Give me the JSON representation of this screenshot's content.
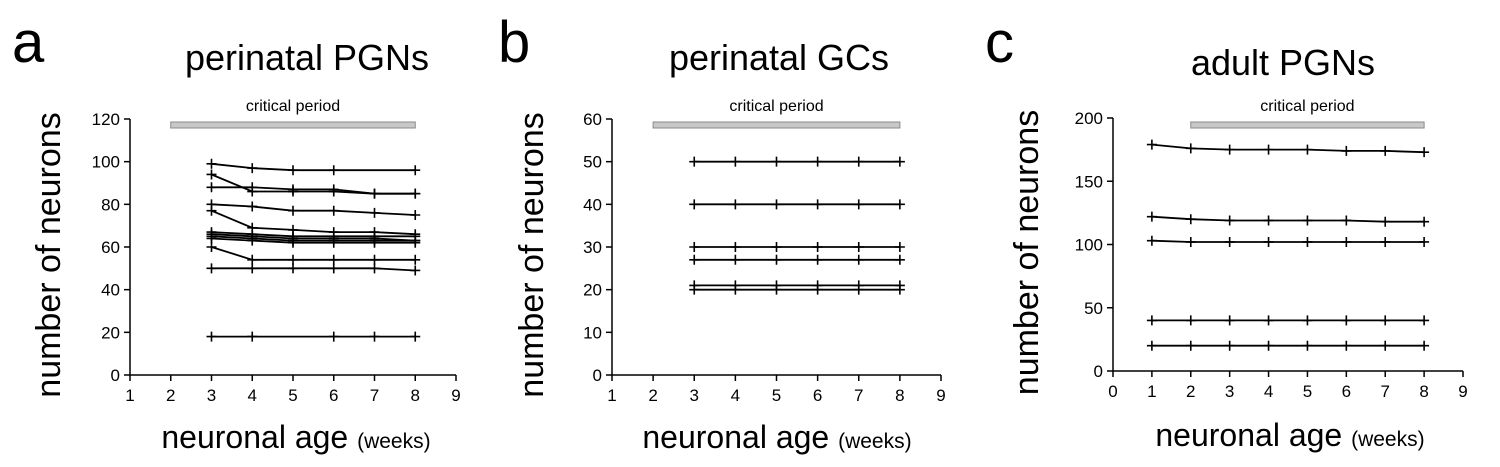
{
  "chart_data": [
    {
      "type": "line",
      "panel_label": "a",
      "title": "perinatal PGNs",
      "ylabel": "number of neurons",
      "xlabel": "neuronal age",
      "xlabel_unit": "(weeks)",
      "xlim": [
        1,
        9
      ],
      "ylim": [
        0,
        120
      ],
      "xticks": [
        1,
        2,
        3,
        4,
        5,
        6,
        7,
        8,
        9
      ],
      "yticks": [
        0,
        20,
        40,
        60,
        80,
        100,
        120
      ],
      "critical_period": {
        "label": "critical period",
        "range": [
          2,
          8
        ]
      },
      "series": [
        {
          "x": [
            3,
            4,
            5,
            6,
            8
          ],
          "y": [
            99,
            97,
            96,
            96,
            96
          ]
        },
        {
          "x": [
            3,
            4,
            5,
            6,
            7,
            8
          ],
          "y": [
            94,
            86,
            86,
            86,
            85,
            85
          ]
        },
        {
          "x": [
            3,
            4,
            5,
            6,
            7,
            8
          ],
          "y": [
            88,
            88,
            87,
            87,
            85,
            85
          ]
        },
        {
          "x": [
            3,
            4,
            5,
            6,
            7,
            8
          ],
          "y": [
            80,
            79,
            77,
            77,
            76,
            75
          ]
        },
        {
          "x": [
            3,
            4,
            5,
            6,
            7,
            8
          ],
          "y": [
            77,
            69,
            68,
            67,
            67,
            66
          ]
        },
        {
          "x": [
            3,
            4,
            5,
            6,
            7,
            8
          ],
          "y": [
            67,
            66,
            65,
            65,
            65,
            65
          ]
        },
        {
          "x": [
            3,
            4,
            5,
            6,
            7,
            8
          ],
          "y": [
            66,
            65,
            64,
            64,
            64,
            63
          ]
        },
        {
          "x": [
            3,
            4,
            5,
            6,
            7,
            8
          ],
          "y": [
            65,
            64,
            63,
            63,
            63,
            63
          ]
        },
        {
          "x": [
            3,
            4,
            5,
            6,
            7,
            8
          ],
          "y": [
            64,
            63,
            62,
            62,
            62,
            62
          ]
        },
        {
          "x": [
            3,
            4,
            5,
            6,
            7,
            8
          ],
          "y": [
            60,
            54,
            54,
            54,
            54,
            54
          ]
        },
        {
          "x": [
            3,
            4,
            5,
            6,
            7,
            8
          ],
          "y": [
            50,
            50,
            50,
            50,
            50,
            49
          ]
        },
        {
          "x": [
            3,
            4,
            6,
            7,
            8
          ],
          "y": [
            18,
            18,
            18,
            18,
            18
          ]
        }
      ]
    },
    {
      "type": "line",
      "panel_label": "b",
      "title": "perinatal GCs",
      "ylabel": "number of neurons",
      "xlabel": "neuronal age",
      "xlabel_unit": "(weeks)",
      "xlim": [
        1,
        9
      ],
      "ylim": [
        0,
        60
      ],
      "xticks": [
        1,
        2,
        3,
        4,
        5,
        6,
        7,
        8,
        9
      ],
      "yticks": [
        0,
        10,
        20,
        30,
        40,
        50,
        60
      ],
      "critical_period": {
        "label": "critical period",
        "range": [
          2,
          8
        ]
      },
      "series": [
        {
          "x": [
            3,
            4,
            5,
            6,
            7,
            8
          ],
          "y": [
            50,
            50,
            50,
            50,
            50,
            50
          ]
        },
        {
          "x": [
            3,
            4,
            5,
            6,
            7,
            8
          ],
          "y": [
            40,
            40,
            40,
            40,
            40,
            40
          ]
        },
        {
          "x": [
            3,
            4,
            5,
            6,
            7,
            8
          ],
          "y": [
            30,
            30,
            30,
            30,
            30,
            30
          ]
        },
        {
          "x": [
            3,
            4,
            5,
            6,
            7,
            8
          ],
          "y": [
            27,
            27,
            27,
            27,
            27,
            27
          ]
        },
        {
          "x": [
            3,
            4,
            5,
            6,
            7,
            8
          ],
          "y": [
            21,
            21,
            21,
            21,
            21,
            21
          ]
        },
        {
          "x": [
            3,
            4,
            5,
            6,
            7,
            8
          ],
          "y": [
            20,
            20,
            20,
            20,
            20,
            20
          ]
        }
      ]
    },
    {
      "type": "line",
      "panel_label": "c",
      "title": "adult PGNs",
      "ylabel": "number of neurons",
      "xlabel": "neuronal age",
      "xlabel_unit": "(weeks)",
      "xlim": [
        0,
        9
      ],
      "ylim": [
        0,
        200
      ],
      "xticks": [
        0,
        1,
        2,
        3,
        4,
        5,
        6,
        7,
        8,
        9
      ],
      "yticks": [
        0,
        50,
        100,
        150,
        200
      ],
      "critical_period": {
        "label": "critical period",
        "range": [
          2,
          8
        ]
      },
      "series": [
        {
          "x": [
            1,
            2,
            3,
            4,
            5,
            6,
            7,
            8
          ],
          "y": [
            179,
            176,
            175,
            175,
            175,
            174,
            174,
            173
          ]
        },
        {
          "x": [
            1,
            2,
            3,
            4,
            5,
            6,
            7,
            8
          ],
          "y": [
            122,
            120,
            119,
            119,
            119,
            119,
            118,
            118
          ]
        },
        {
          "x": [
            1,
            2,
            3,
            4,
            5,
            6,
            7,
            8
          ],
          "y": [
            103,
            102,
            102,
            102,
            102,
            102,
            102,
            102
          ]
        },
        {
          "x": [
            1,
            2,
            3,
            4,
            5,
            6,
            7,
            8
          ],
          "y": [
            40,
            40,
            40,
            40,
            40,
            40,
            40,
            40
          ]
        },
        {
          "x": [
            1,
            2,
            3,
            4,
            5,
            6,
            7,
            8
          ],
          "y": [
            20,
            20,
            20,
            20,
            20,
            20,
            20,
            20
          ]
        }
      ]
    }
  ]
}
